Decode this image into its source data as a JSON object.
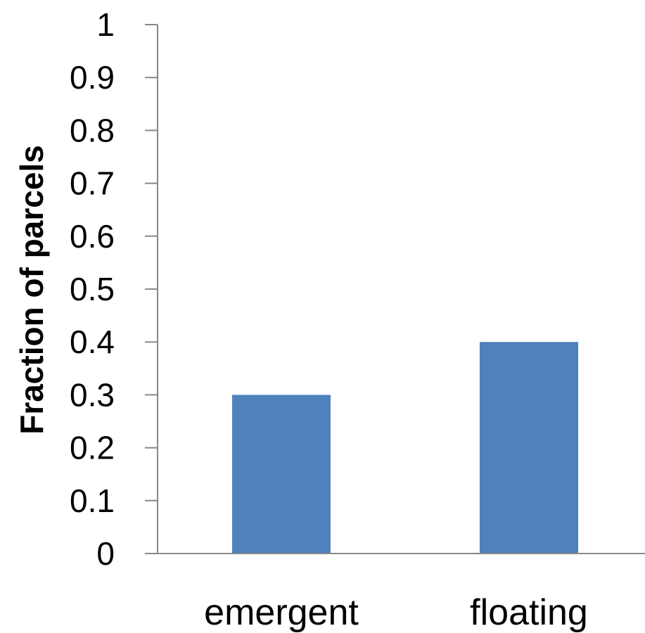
{
  "chart_data": {
    "type": "bar",
    "categories": [
      "emergent",
      "floating"
    ],
    "values": [
      0.3,
      0.4
    ],
    "title": "",
    "xlabel": "",
    "ylabel": "Fraction of parcels",
    "ylim": [
      0,
      1
    ],
    "yticks": [
      "0",
      "0.1",
      "0.2",
      "0.3",
      "0.4",
      "0.5",
      "0.6",
      "0.7",
      "0.8",
      "0.9",
      "1"
    ],
    "grid": false,
    "legend": "none",
    "bar_color": "#4F81BD"
  }
}
